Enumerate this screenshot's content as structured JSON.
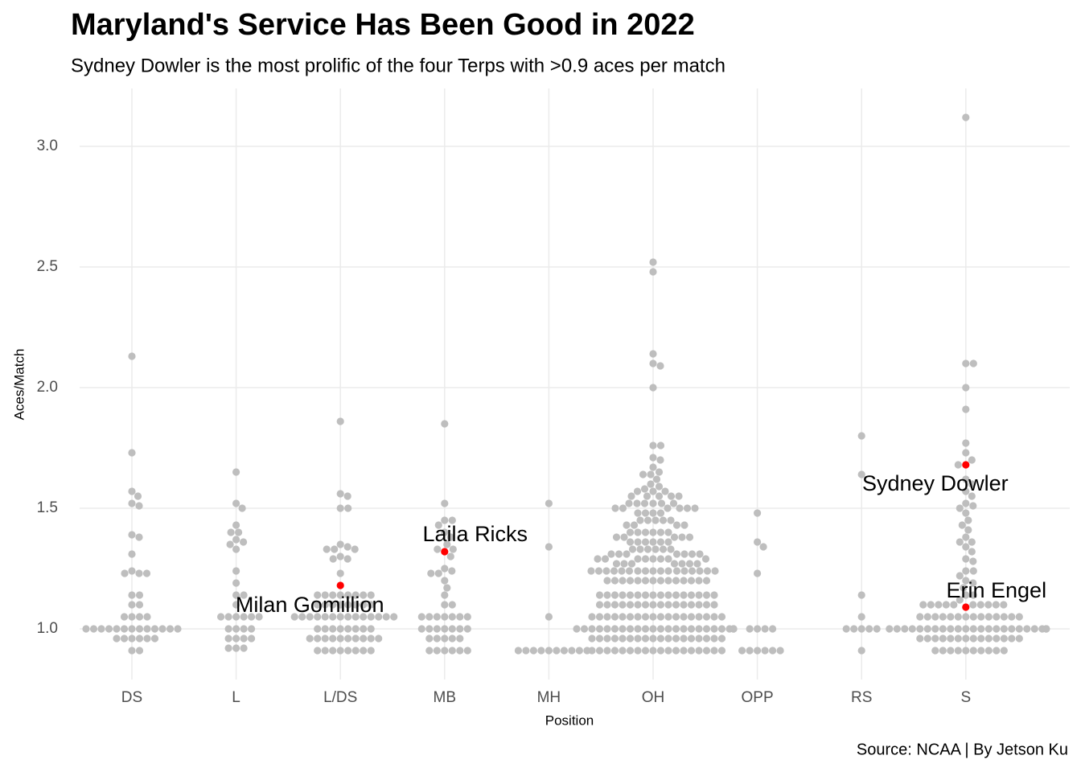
{
  "chart_data": {
    "type": "beeswarm",
    "title": "Maryland's Service Has Been Good in 2022",
    "subtitle": "Sydney Dowler is the most prolific of the four Terps with >0.9 aces per match",
    "x_label": "Position",
    "y_label": "Aces/Match",
    "caption": "Source: NCAA | By Jetson Ku",
    "color": "#bebebe",
    "grid": true,
    "ylim": [
      0.79,
      3.24
    ],
    "yticks": [
      {
        "value": 1,
        "label": "1.0"
      },
      1.5,
      {
        "value": 2,
        "label": "2.0"
      },
      2.5,
      {
        "value": 3,
        "label": "3.0"
      }
    ],
    "categories": [
      "DS",
      "L",
      "L/DS",
      "MB",
      "MH",
      "OH",
      "OPP",
      "RS",
      "S"
    ],
    "values": [
      [
        2.13,
        1.73,
        1.57,
        1.55,
        1.52,
        1.51,
        1.39,
        1.38,
        1.31,
        1.24,
        1.23,
        1.23,
        1.23,
        1.14,
        1.14,
        1.1,
        1.1,
        1.05,
        1.05,
        1.05,
        1.05,
        1,
        1,
        1,
        1,
        1,
        1,
        1,
        1,
        1,
        1,
        1,
        1,
        1,
        0.96,
        0.96,
        0.96,
        0.96,
        0.96,
        0.96,
        0.91,
        0.91
      ],
      [
        1.65,
        1.52,
        1.5,
        1.43,
        1.4,
        1.4,
        1.37,
        1.36,
        1.35,
        1.33,
        1.24,
        1.19,
        1.14,
        1.14,
        1.1,
        1.05,
        1.05,
        1.05,
        1.05,
        1.05,
        1.05,
        1,
        1,
        1,
        1,
        0.96,
        0.96,
        0.96,
        0.96,
        0.92,
        0.92,
        0.92
      ],
      [
        1.86,
        1.56,
        1.55,
        1.5,
        1.5,
        1.35,
        1.34,
        1.33,
        1.33,
        1.33,
        1.3,
        1.29,
        1.29,
        1.23,
        1.14,
        1.14,
        1.14,
        1.14,
        1.14,
        1.14,
        1.14,
        1.14,
        1.1,
        1.1,
        1.1,
        1.1,
        1.1,
        1.1,
        1.1,
        1.1,
        1.05,
        1.05,
        1.05,
        1.05,
        1.05,
        1.05,
        1.05,
        1.05,
        1.05,
        1.05,
        1.05,
        1.05,
        1.05,
        1.05,
        1,
        1,
        1,
        1,
        1,
        1,
        1,
        1,
        0.96,
        0.96,
        0.96,
        0.96,
        0.96,
        0.96,
        0.96,
        0.96,
        0.96,
        0.96,
        0.91,
        0.91,
        0.91,
        0.91,
        0.91,
        0.91,
        0.91,
        0.91
      ],
      [
        1.85,
        1.52,
        1.45,
        1.45,
        1.43,
        1.4,
        1.38,
        1.35,
        1.33,
        1.33,
        1.3,
        1.25,
        1.24,
        1.23,
        1.23,
        1.2,
        1.17,
        1.14,
        1.1,
        1.1,
        1.05,
        1.05,
        1.05,
        1.05,
        1.05,
        1.05,
        1.05,
        1,
        1,
        1,
        1,
        1,
        1,
        1,
        0.96,
        0.96,
        0.96,
        0.96,
        0.96,
        0.91,
        0.91,
        0.91,
        0.91,
        0.91,
        0.91
      ],
      [
        1.52,
        1.34,
        1.05,
        0.91,
        0.91,
        0.91,
        0.91,
        0.91,
        0.91,
        0.91,
        0.91,
        0.91,
        0.91
      ],
      [
        2.52,
        2.48,
        2.14,
        2.1,
        2.09,
        2,
        1.76,
        1.76,
        1.71,
        1.7,
        1.67,
        1.65,
        1.64,
        1.64,
        1.62,
        1.6,
        1.59,
        1.58,
        1.57,
        1.57,
        1.57,
        1.55,
        1.55,
        1.55,
        1.55,
        1.55,
        1.52,
        1.52,
        1.52,
        1.52,
        1.52,
        1.52,
        1.5,
        1.5,
        1.5,
        1.5,
        1.5,
        1.5,
        1.48,
        1.48,
        1.48,
        1.48,
        1.45,
        1.45,
        1.45,
        1.45,
        1.45,
        1.43,
        1.43,
        1.43,
        1.43,
        1.4,
        1.4,
        1.4,
        1.4,
        1.4,
        1.4,
        1.38,
        1.38,
        1.38,
        1.38,
        1.38,
        1.36,
        1.36,
        1.36,
        1.36,
        1.36,
        1.36,
        1.33,
        1.33,
        1.33,
        1.33,
        1.33,
        1.33,
        1.31,
        1.31,
        1.31,
        1.31,
        1.31,
        1.31,
        1.31,
        1.29,
        1.29,
        1.29,
        1.29,
        1.29,
        1.29,
        1.29,
        1.29,
        1.27,
        1.27,
        1.27,
        1.27,
        1.27,
        1.27,
        1.27,
        1.24,
        1.24,
        1.24,
        1.24,
        1.24,
        1.24,
        1.24,
        1.24,
        1.24,
        1.24,
        1.24,
        1.24,
        1.24,
        1.24,
        1.24,
        1.24,
        1.24,
        1.2,
        1.2,
        1.2,
        1.2,
        1.2,
        1.2,
        1.2,
        1.2,
        1.2,
        1.2,
        1.2,
        1.2,
        1.2,
        1.2,
        1.14,
        1.14,
        1.14,
        1.14,
        1.14,
        1.14,
        1.14,
        1.14,
        1.14,
        1.14,
        1.14,
        1.14,
        1.14,
        1.14,
        1.14,
        1.14,
        1.1,
        1.1,
        1.1,
        1.1,
        1.1,
        1.1,
        1.1,
        1.1,
        1.1,
        1.1,
        1.1,
        1.1,
        1.1,
        1.1,
        1.1,
        1.1,
        1.05,
        1.05,
        1.05,
        1.05,
        1.05,
        1.05,
        1.05,
        1.05,
        1.05,
        1.05,
        1.05,
        1.05,
        1.05,
        1.05,
        1.05,
        1.05,
        1.05,
        1.05,
        1,
        1,
        1,
        1,
        1,
        1,
        1,
        1,
        1,
        1,
        1,
        1,
        1,
        1,
        1,
        1,
        1,
        1,
        1,
        1,
        1,
        1,
        1,
        1,
        0.96,
        0.96,
        0.96,
        0.96,
        0.96,
        0.96,
        0.96,
        0.96,
        0.96,
        0.96,
        0.96,
        0.96,
        0.96,
        0.96,
        0.96,
        0.96,
        0.96,
        0.96,
        0.91,
        0.91,
        0.91,
        0.91,
        0.91,
        0.91,
        0.91,
        0.91,
        0.91,
        0.91,
        0.91,
        0.91,
        0.91,
        0.91,
        0.91,
        0.91,
        0.91,
        0.91
      ],
      [
        1.48,
        1.36,
        1.34,
        1.23,
        1,
        1,
        1,
        1,
        0.91,
        0.91,
        0.91,
        0.91,
        0.91,
        0.91
      ],
      [
        1.8,
        1.64,
        1.14,
        1.05,
        1,
        1,
        1,
        1,
        1,
        0.91
      ],
      [
        3.12,
        2.1,
        2.1,
        2,
        1.91,
        1.77,
        1.73,
        1.7,
        1.68,
        1.62,
        1.6,
        1.57,
        1.55,
        1.52,
        1.51,
        1.5,
        1.48,
        1.45,
        1.43,
        1.41,
        1.38,
        1.36,
        1.36,
        1.34,
        1.32,
        1.29,
        1.28,
        1.24,
        1.24,
        1.22,
        1.2,
        1.19,
        1.17,
        1.14,
        1.14,
        1.12,
        1.1,
        1.1,
        1.1,
        1.1,
        1.1,
        1.1,
        1.1,
        1.1,
        1.1,
        1.1,
        1.05,
        1.05,
        1.05,
        1.05,
        1.05,
        1.05,
        1.05,
        1.05,
        1.05,
        1.05,
        1.05,
        1.05,
        1.05,
        1.05,
        1,
        1,
        1,
        1,
        1,
        1,
        1,
        1,
        1,
        1,
        1,
        1,
        1,
        1,
        1,
        1,
        1,
        1,
        1,
        1,
        1,
        1,
        1,
        1,
        0.96,
        0.96,
        0.96,
        0.96,
        0.96,
        0.96,
        0.96,
        0.96,
        0.96,
        0.96,
        0.96,
        0.96,
        0.96,
        0.96,
        0.91,
        0.91,
        0.91,
        0.91,
        0.91,
        0.91,
        0.91,
        0.91,
        0.91,
        0.91
      ]
    ],
    "highlights": [
      {
        "name": "Milan Gomillion",
        "category": "L/DS",
        "value": 1.18,
        "color": "#ff0000"
      },
      {
        "name": "Laila Ricks",
        "category": "MB",
        "value": 1.32,
        "color": "#ff0000"
      },
      {
        "name": "Sydney Dowler",
        "category": "S",
        "value": 1.68,
        "color": "#ff0000"
      },
      {
        "name": "Erin Engel",
        "category": "S",
        "value": 1.09,
        "color": "#ff0000"
      }
    ]
  }
}
